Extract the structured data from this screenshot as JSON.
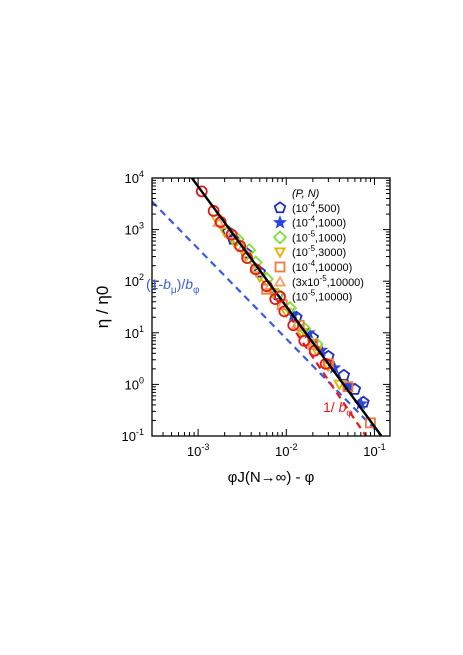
{
  "chart_data": {
    "type": "scatter",
    "xlabel": "φJ(N→∞) - φ",
    "ylabel": "η / η0",
    "x_scale": "log",
    "y_scale": "log",
    "xlim": [
      0.0003,
      0.15
    ],
    "ylim": [
      0.1,
      10000
    ],
    "x_ticks": [
      {
        "v": 0.001,
        "base": "10",
        "exp": "-3"
      },
      {
        "v": 0.01,
        "base": "10",
        "exp": "-2"
      },
      {
        "v": 0.1,
        "base": "10",
        "exp": "-1"
      }
    ],
    "y_ticks": [
      {
        "v": 0.1,
        "base": "10",
        "exp": "-1"
      },
      {
        "v": 1,
        "base": "10",
        "exp": "0"
      },
      {
        "v": 10,
        "base": "10",
        "exp": "1"
      },
      {
        "v": 100,
        "base": "10",
        "exp": "2"
      },
      {
        "v": 1000,
        "base": "10",
        "exp": "3"
      },
      {
        "v": 10000,
        "base": "10",
        "exp": "4"
      }
    ],
    "legend_title": "(P, N)",
    "legend_placement": "top-right",
    "series": [
      {
        "name": "(10-4,500)",
        "label_parts": [
          "(10",
          "-4",
          ",500)"
        ],
        "marker": "pentagon",
        "color": "#1f2fb5",
        "x": [
          0.0022,
          0.0025,
          0.0035,
          0.005,
          0.008,
          0.013,
          0.02,
          0.03,
          0.045,
          0.06,
          0.075
        ],
        "y": [
          900,
          650,
          350,
          150,
          55,
          20,
          8,
          3.5,
          1.5,
          0.8,
          0.45
        ]
      },
      {
        "name": "(10-4,1000)",
        "label_parts": [
          "(10",
          "-4",
          ",1000)"
        ],
        "marker": "star",
        "color": "#2b45e0",
        "x": [
          0.012,
          0.018,
          0.025,
          0.035,
          0.05,
          0.07
        ],
        "y": [
          22,
          10,
          4.6,
          2.1,
          0.95,
          0.42
        ]
      },
      {
        "name": "(10-5,1000)",
        "label_parts": [
          "(10",
          "-5",
          ",1000)"
        ],
        "marker": "diamond",
        "color": "#7ee03c",
        "x": [
          0.0028,
          0.0038,
          0.0045,
          0.006,
          0.008,
          0.011,
          0.016,
          0.022
        ],
        "y": [
          650,
          400,
          230,
          110,
          55,
          30,
          12,
          6
        ]
      },
      {
        "name": "(10-5,3000)",
        "label_parts": [
          "(10",
          "-5",
          ",3000)"
        ],
        "marker": "tri-down",
        "color": "#e8b000",
        "x": [
          0.0016,
          0.002,
          0.0026,
          0.0035,
          0.005,
          0.007,
          0.01,
          0.015,
          0.022,
          0.03,
          0.04
        ],
        "y": [
          1600,
          900,
          550,
          300,
          120,
          60,
          25,
          10,
          4.5,
          2.2,
          1.0
        ]
      },
      {
        "name": "(10-4,10000)",
        "label_parts": [
          "(10",
          "-4",
          ",10000)"
        ],
        "marker": "square",
        "color": "#f07a3a",
        "x": [
          0.006,
          0.009,
          0.014,
          0.02,
          0.03,
          0.05,
          0.09
        ],
        "y": [
          70,
          35,
          14,
          6,
          2.5,
          0.9,
          0.18
        ]
      },
      {
        "name": "(3x10-5,10000)",
        "label_parts": [
          "(3x10",
          "-5",
          ",10000)"
        ],
        "marker": "tri-up",
        "color": "#f5a060",
        "x": [
          0.0017,
          0.0024,
          0.0032,
          0.0045,
          0.0065,
          0.009,
          0.013,
          0.02
        ],
        "y": [
          1400,
          800,
          450,
          180,
          80,
          35,
          14,
          6
        ]
      },
      {
        "name": "(10-5,10000)",
        "label_parts": [
          "(10",
          "-5",
          ",10000)"
        ],
        "marker": "circle",
        "color": "#e81818",
        "x": [
          0.0011,
          0.0015,
          0.0018,
          0.0024,
          0.003,
          0.0036,
          0.0045,
          0.006,
          0.0075,
          0.0095,
          0.012,
          0.016,
          0.021,
          0.028
        ],
        "y": [
          5500,
          2300,
          1400,
          800,
          480,
          280,
          170,
          80,
          45,
          26,
          14,
          7,
          4.5,
          2.5
        ]
      }
    ],
    "lines": [
      {
        "name": "fit",
        "style": "solid",
        "color": "#000000",
        "x": [
          0.00085,
          0.12
        ],
        "y": [
          10000,
          0.1
        ]
      },
      {
        "name": "blue-dashed",
        "style": "dashed",
        "color": "#3a5be0",
        "x": [
          0.0003,
          0.12
        ],
        "y": [
          3500,
          0.1
        ]
      },
      {
        "name": "red-dashed",
        "style": "dashed",
        "color": "#e81818",
        "x": [
          0.013,
          0.08
        ],
        "y": [
          10,
          0.1
        ]
      }
    ],
    "annotations": [
      {
        "id": "blue",
        "color": "#3a5be0",
        "parts": [
          [
            "(1-",
            ""
          ],
          [
            "b",
            "i"
          ],
          [
            "μ",
            "sub"
          ],
          [
            ")/",
            ""
          ],
          [
            "b",
            "i"
          ],
          [
            "φ",
            "sub"
          ]
        ]
      },
      {
        "id": "red",
        "color": "#e81818",
        "parts": [
          [
            "1/ ",
            ""
          ],
          [
            "b",
            "i"
          ],
          [
            "φ",
            "sub"
          ]
        ]
      }
    ]
  }
}
